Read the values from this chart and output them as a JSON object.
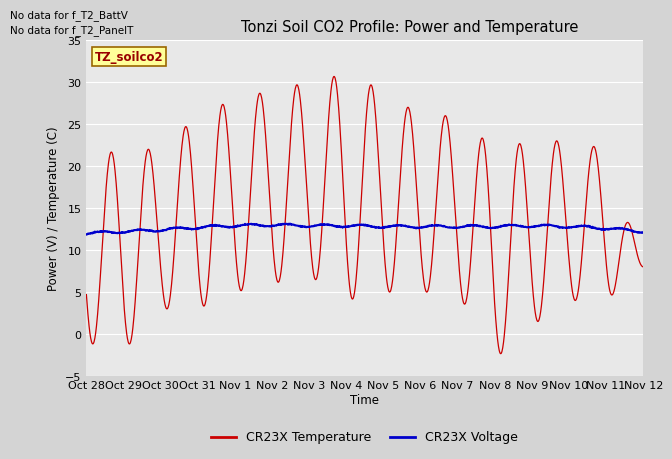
{
  "title": "Tonzi Soil CO2 Profile: Power and Temperature",
  "ylabel": "Power (V) / Temperature (C)",
  "xlabel": "Time",
  "ylim": [
    -5,
    35
  ],
  "no_data_text1": "No data for f_T2_BattV",
  "no_data_text2": "No data for f_T2_PanelT",
  "legend_label1": "CR23X Temperature",
  "legend_label2": "CR23X Voltage",
  "legend_box_label": "TZ_soilco2",
  "fig_bg_color": "#d4d4d4",
  "plot_bg_color": "#e8e8e8",
  "grid_color": "#ffffff",
  "temp_color": "#cc0000",
  "volt_color": "#0000cc",
  "yticks": [
    -5,
    0,
    5,
    10,
    15,
    20,
    25,
    30,
    35
  ],
  "xtick_labels": [
    "Oct 28",
    "Oct 29",
    "Oct 30",
    "Oct 31",
    "Nov 1",
    "Nov 2",
    "Nov 3",
    "Nov 4",
    "Nov 5",
    "Nov 6",
    "Nov 7",
    "Nov 8",
    "Nov 9",
    "Nov 10",
    "Nov 11",
    "Nov 12"
  ],
  "n_days": 15
}
